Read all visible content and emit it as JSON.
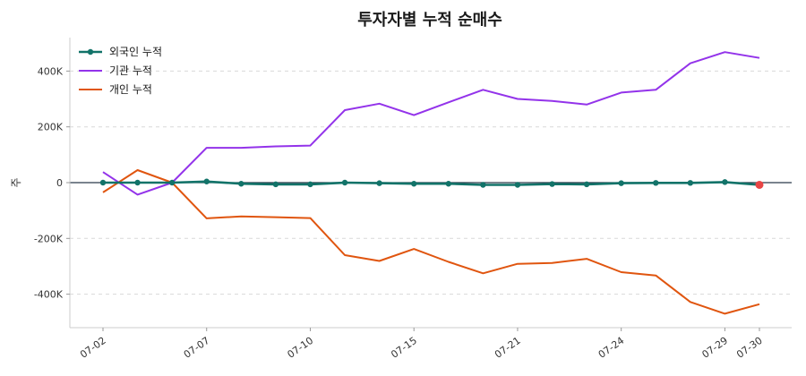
{
  "chart_data": {
    "type": "line",
    "title": "투자자별 누적 순매수",
    "xlabel": "",
    "ylabel": "주",
    "ylim": [
      -520000,
      520000
    ],
    "yticks": [
      -400000,
      -200000,
      0,
      200000,
      400000
    ],
    "ytick_labels": [
      "-400K",
      "-200K",
      "0",
      "200K",
      "400K"
    ],
    "x": [
      "07-02",
      "07-03",
      "07-04",
      "07-07",
      "07-08",
      "07-09",
      "07-10",
      "07-11",
      "07-14",
      "07-15",
      "07-16",
      "07-17",
      "07-21",
      "07-22",
      "07-23",
      "07-24",
      "07-25",
      "07-28",
      "07-29",
      "07-30"
    ],
    "xtick_labels": [
      "07-02",
      "07-07",
      "07-10",
      "07-15",
      "07-21",
      "07-24",
      "07-29",
      "07-30"
    ],
    "grid": "horizontal dashed",
    "legend_position": "top-left",
    "zero_line": true,
    "series": [
      {
        "name": "외국인 누적",
        "color": "#127369",
        "markers": true,
        "last_point_color": "#e84545",
        "values": [
          0,
          0,
          0,
          4000,
          -4000,
          -6000,
          -6000,
          0,
          -2000,
          -4000,
          -4000,
          -8000,
          -8000,
          -5000,
          -6000,
          -2000,
          -1000,
          -1000,
          2000,
          -8000
        ]
      },
      {
        "name": "기관 누적",
        "color": "#9333ea",
        "markers": false,
        "values": [
          38000,
          -43000,
          0,
          125000,
          125000,
          130000,
          133000,
          260000,
          283000,
          242000,
          288000,
          333000,
          300000,
          293000,
          280000,
          323000,
          333000,
          428000,
          468000,
          447000
        ]
      },
      {
        "name": "개인 누적",
        "color": "#e0550f",
        "markers": false,
        "values": [
          -35000,
          45000,
          0,
          -128000,
          -121000,
          -124000,
          -127000,
          -260000,
          -281000,
          -238000,
          -284000,
          -325000,
          -291000,
          -288000,
          -273000,
          -321000,
          -333000,
          -428000,
          -470000,
          -436000
        ]
      }
    ]
  }
}
